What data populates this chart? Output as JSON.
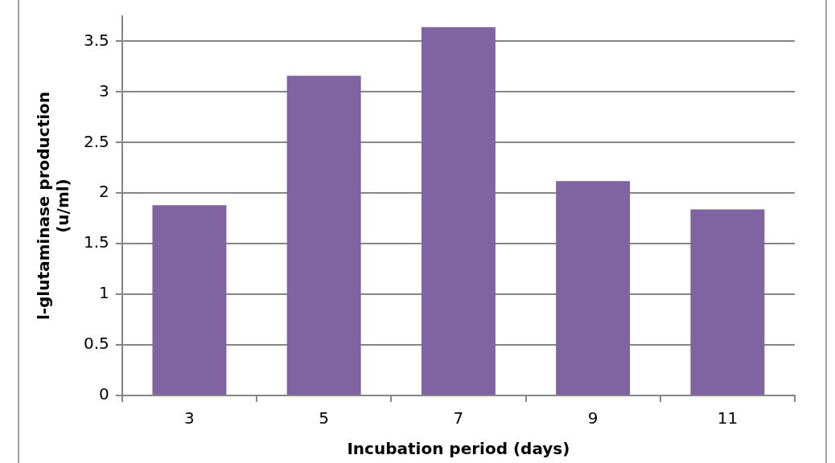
{
  "chart_data": {
    "type": "bar",
    "xlabel": "Incubation period (days)",
    "ylabel": "l-glutaminase production (u/ml)",
    "categories": [
      "3",
      "5",
      "7",
      "9",
      "11"
    ],
    "values": [
      1.88,
      3.16,
      3.64,
      2.12,
      1.84
    ],
    "color": "#8064a2",
    "ylim": [
      0,
      3.75
    ],
    "yticks": [
      0,
      0.5,
      1,
      1.5,
      2,
      2.5,
      3,
      3.5
    ],
    "grid": "y"
  }
}
